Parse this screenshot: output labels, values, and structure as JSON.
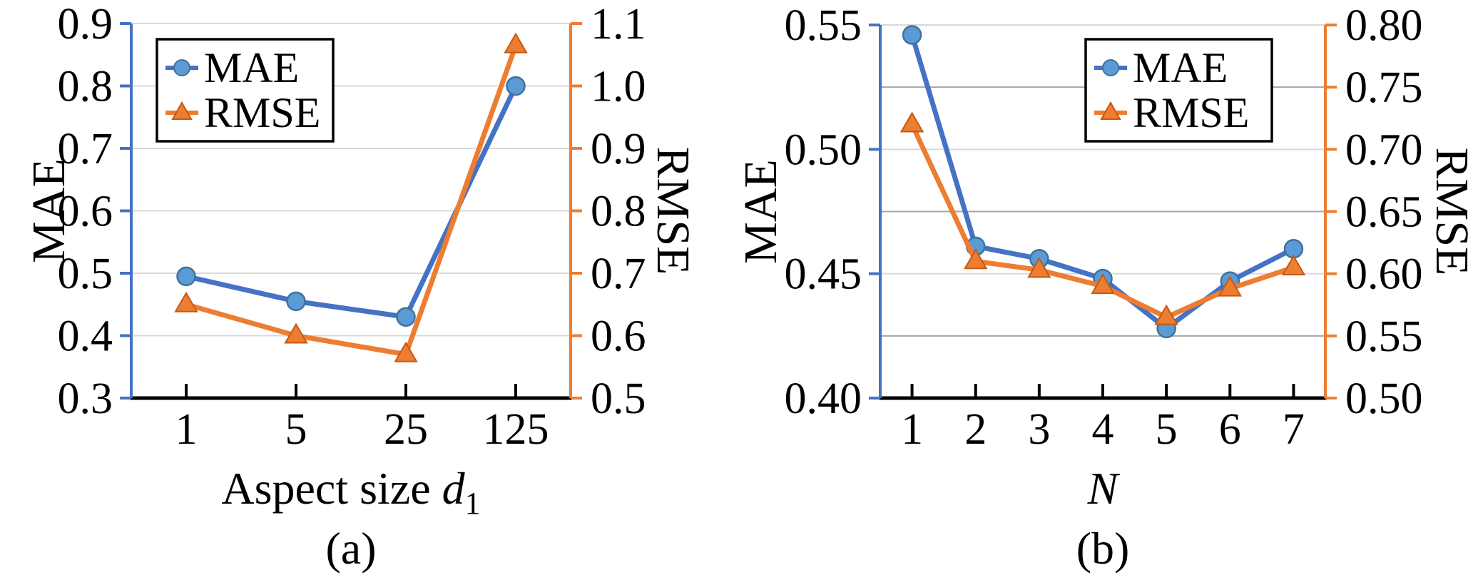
{
  "figure": {
    "background": "#FFFFFF",
    "colors": {
      "grid_major": "#D9D9D9",
      "grid_minor": "#A6A6A6",
      "x_axis": "#000000",
      "left_axis": "#4472C4",
      "right_axis": "#ED7D31",
      "legend_border": "#000000",
      "legend_fill": "#FFFFFF",
      "text": "#000000"
    }
  },
  "chart_data": [
    {
      "id": "a",
      "type": "line",
      "caption": "(a)",
      "xlabel_parts": [
        {
          "text": "Aspect size "
        },
        {
          "text": "d",
          "italic": true
        },
        {
          "text": "1",
          "sub": true
        }
      ],
      "categories": [
        "1",
        "5",
        "25",
        "125"
      ],
      "left_axis": {
        "title": "MAE",
        "min": 0.3,
        "max": 0.9,
        "labels": [
          {
            "v": 0.9,
            "t": "0.9"
          },
          {
            "v": 0.8,
            "t": "0.8"
          },
          {
            "v": 0.7,
            "t": "0.7"
          },
          {
            "v": 0.6,
            "t": "0.6"
          },
          {
            "v": 0.5,
            "t": "0.5"
          },
          {
            "v": 0.4,
            "t": "0.4"
          },
          {
            "v": 0.3,
            "t": "0.3"
          }
        ]
      },
      "right_axis": {
        "title": "RMSE",
        "min": 0.5,
        "max": 1.1,
        "labels": [
          {
            "v": 1.1,
            "t": "1.1"
          },
          {
            "v": 1.0,
            "t": "1.0"
          },
          {
            "v": 0.9,
            "t": "0.9"
          },
          {
            "v": 0.8,
            "t": "0.8"
          },
          {
            "v": 0.7,
            "t": "0.7"
          },
          {
            "v": 0.6,
            "t": "0.6"
          },
          {
            "v": 0.5,
            "t": "0.5"
          }
        ]
      },
      "gridlines_major": [
        0.9,
        0.8,
        0.7,
        0.6,
        0.5,
        0.4
      ],
      "gridlines_minor": [],
      "series": [
        {
          "name": "MAE",
          "axis": "left",
          "marker": "circle",
          "line_color": "#4472C4",
          "marker_fill": "#5B9BD5",
          "marker_edge": "#41719C",
          "values": [
            0.495,
            0.455,
            0.43,
            0.8
          ]
        },
        {
          "name": "RMSE",
          "axis": "right",
          "marker": "triangle",
          "line_color": "#ED7D31",
          "marker_fill": "#ED7D31",
          "marker_edge": "#C55A11",
          "values": [
            0.65,
            0.6,
            0.57,
            1.065
          ]
        }
      ],
      "legend": {
        "items": [
          "MAE",
          "RMSE"
        ]
      }
    },
    {
      "id": "b",
      "type": "line",
      "caption": "(b)",
      "xlabel_parts": [
        {
          "text": "N",
          "italic": true
        }
      ],
      "categories": [
        "1",
        "2",
        "3",
        "4",
        "5",
        "6",
        "7"
      ],
      "left_axis": {
        "title": "MAE",
        "min": 0.4,
        "max": 0.55,
        "labels": [
          {
            "v": 0.55,
            "t": "0.55"
          },
          {
            "v": 0.5,
            "t": "0.50"
          },
          {
            "v": 0.45,
            "t": "0.45"
          },
          {
            "v": 0.4,
            "t": "0.40"
          }
        ]
      },
      "right_axis": {
        "title": "RMSE",
        "min": 0.5,
        "max": 0.8,
        "labels": [
          {
            "v": 0.8,
            "t": "0.80"
          },
          {
            "v": 0.75,
            "t": "0.75"
          },
          {
            "v": 0.7,
            "t": "0.70"
          },
          {
            "v": 0.65,
            "t": "0.65"
          },
          {
            "v": 0.6,
            "t": "0.60"
          },
          {
            "v": 0.55,
            "t": "0.55"
          },
          {
            "v": 0.5,
            "t": "0.50"
          }
        ]
      },
      "gridlines_major": [
        0.55,
        0.5,
        0.45
      ],
      "gridlines_minor": [
        0.525,
        0.475,
        0.425
      ],
      "series": [
        {
          "name": "MAE",
          "axis": "left",
          "marker": "circle",
          "line_color": "#4472C4",
          "marker_fill": "#5B9BD5",
          "marker_edge": "#41719C",
          "values": [
            0.546,
            0.461,
            0.456,
            0.448,
            0.428,
            0.447,
            0.46
          ]
        },
        {
          "name": "RMSE",
          "axis": "right",
          "marker": "triangle",
          "line_color": "#ED7D31",
          "marker_fill": "#ED7D31",
          "marker_edge": "#C55A11",
          "values": [
            0.72,
            0.61,
            0.603,
            0.59,
            0.565,
            0.588,
            0.605
          ]
        }
      ],
      "legend": {
        "items": [
          "MAE",
          "RMSE"
        ]
      }
    }
  ]
}
